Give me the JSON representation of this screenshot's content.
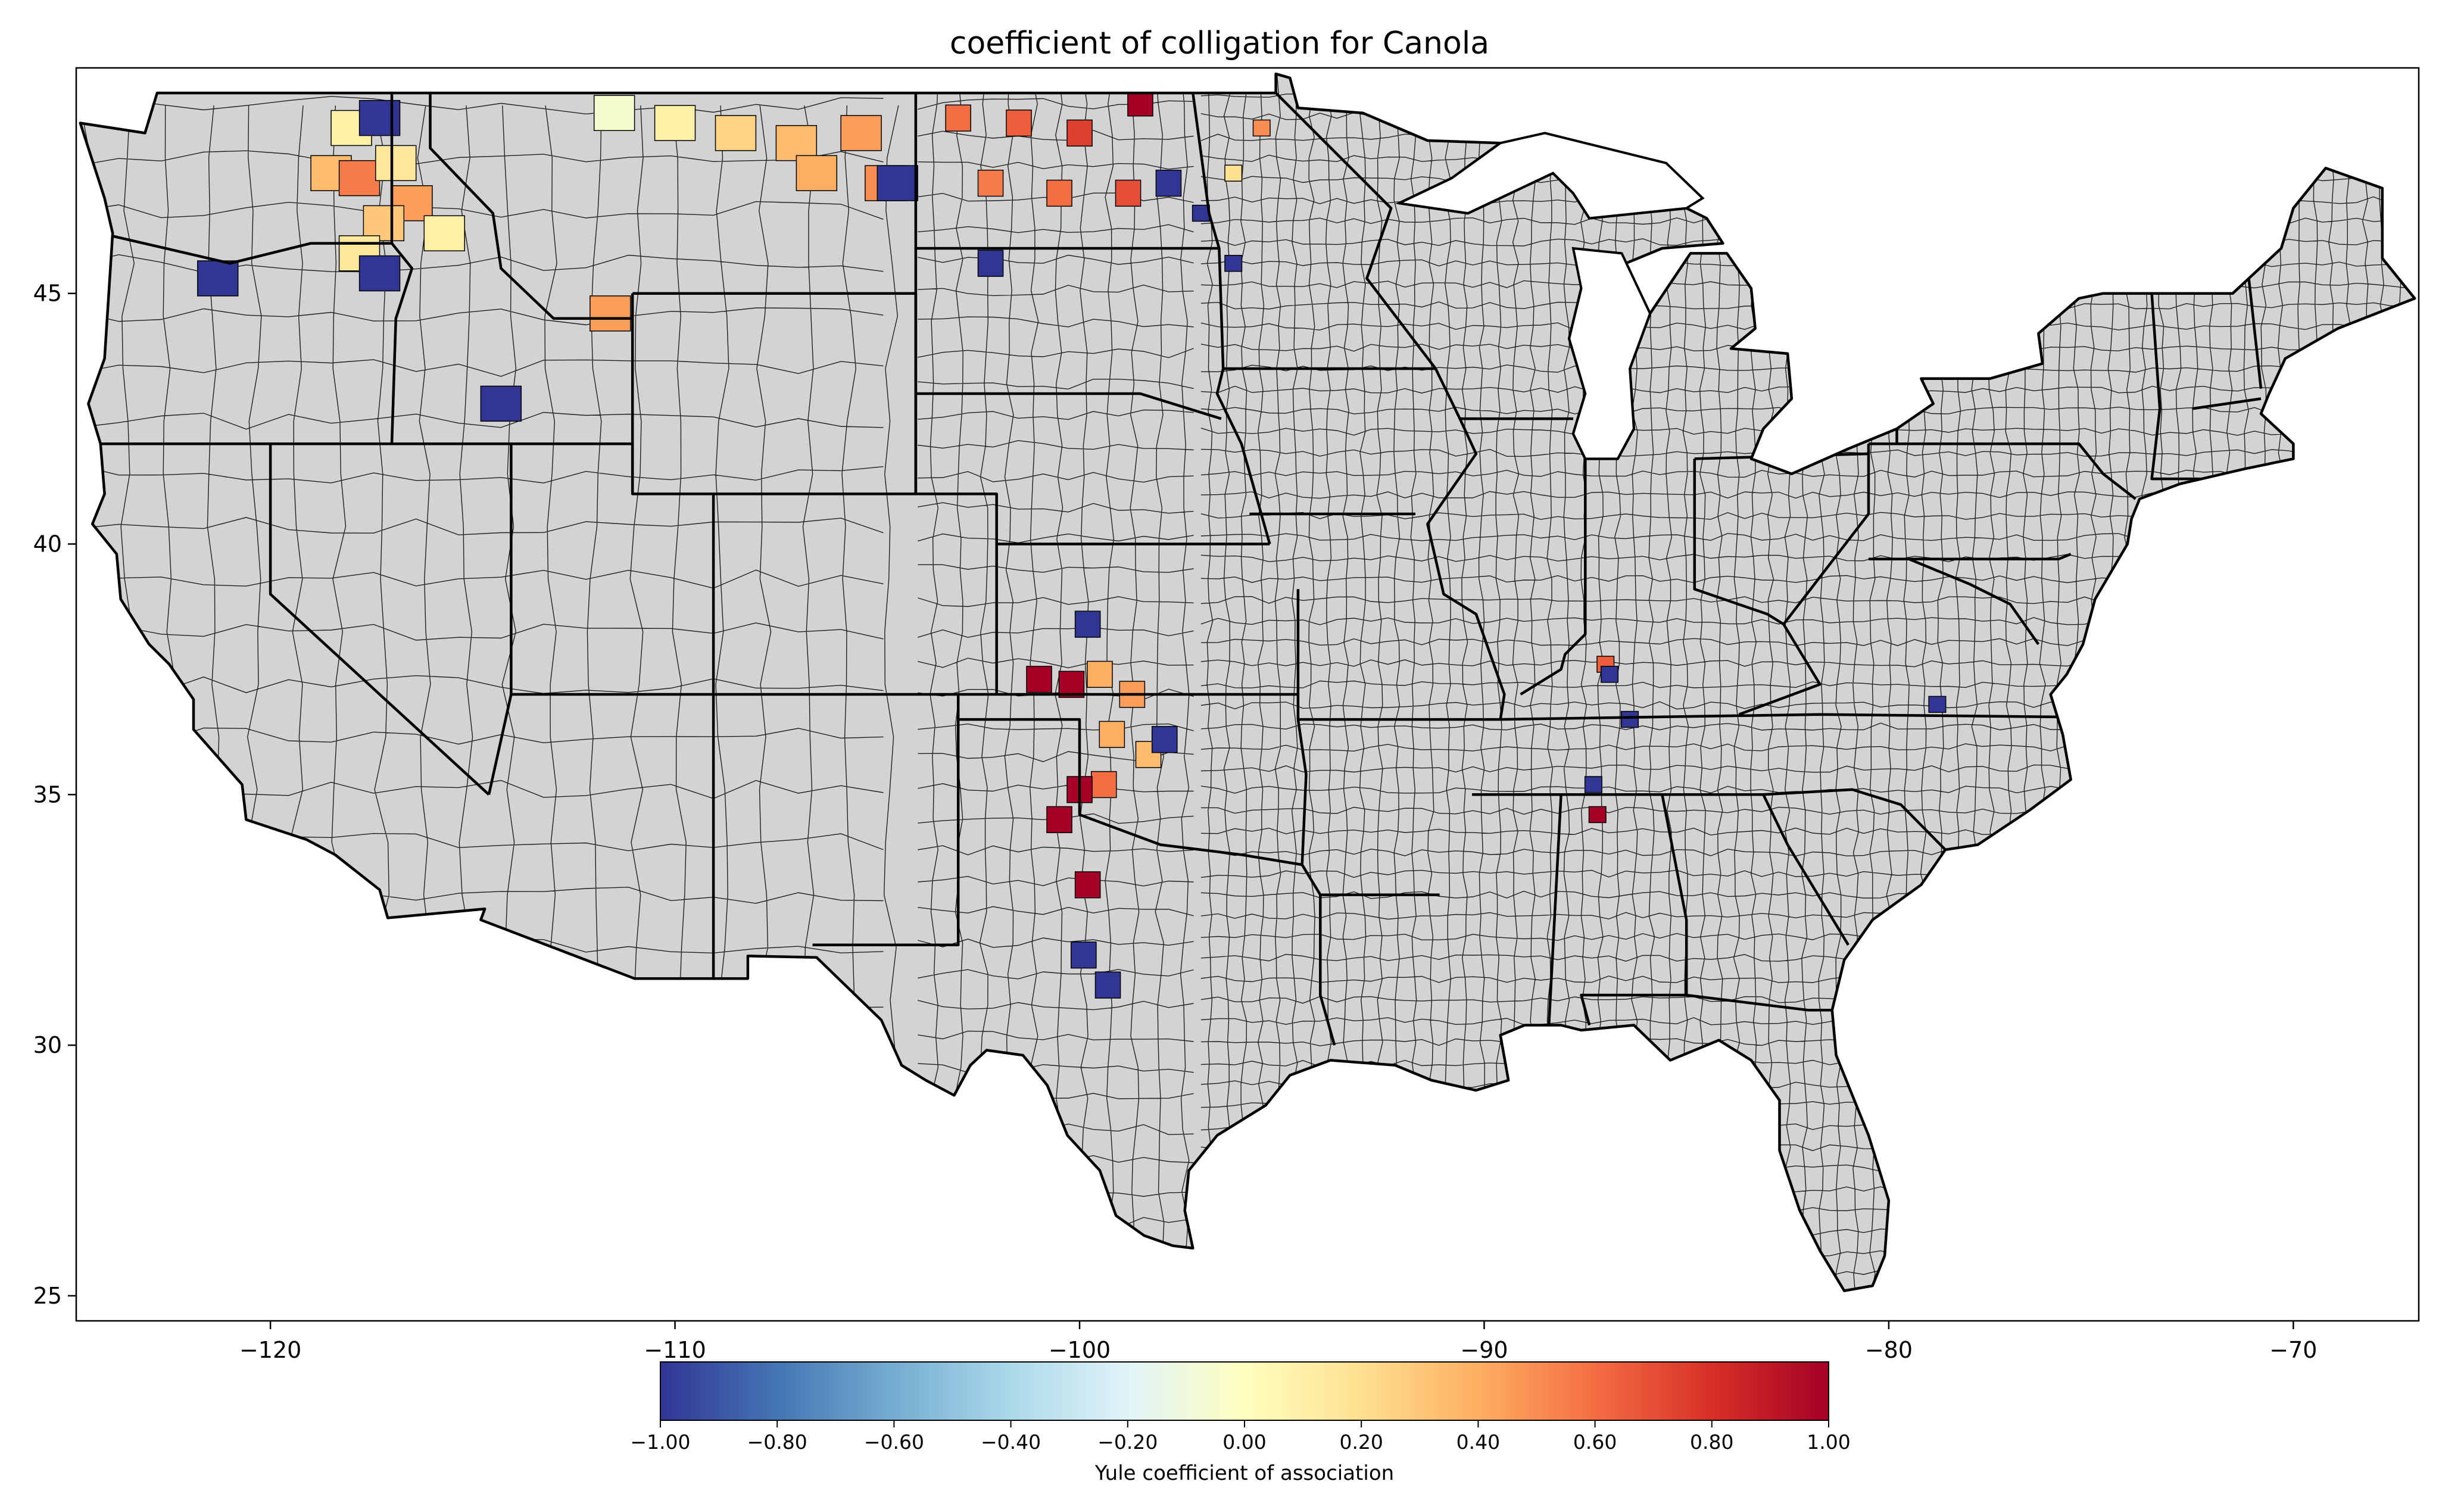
{
  "title": "coefficient of colligation for Canola",
  "x_axis": {
    "ticks": [
      "−120",
      "−110",
      "−100",
      "−90",
      "−80",
      "−70"
    ],
    "tick_values": [
      -120,
      -110,
      -100,
      -90,
      -80,
      -70
    ],
    "range": [
      -124.8,
      -66.9
    ]
  },
  "y_axis": {
    "ticks": [
      "25",
      "30",
      "35",
      "40",
      "45"
    ],
    "tick_values": [
      25,
      30,
      35,
      40,
      45
    ],
    "range": [
      24.5,
      49.5
    ]
  },
  "colorbar": {
    "label": "Yule coefficient of association",
    "colormap": "RdYlBu_r",
    "range": [
      -1.0,
      1.0
    ],
    "ticks": [
      "−1.00",
      "−0.80",
      "−0.60",
      "−0.40",
      "−0.20",
      "0.00",
      "0.20",
      "0.40",
      "0.60",
      "0.80",
      "1.00"
    ],
    "tick_values": [
      -1.0,
      -0.8,
      -0.6,
      -0.4,
      -0.2,
      0.0,
      0.2,
      0.4,
      0.6,
      0.8,
      1.0
    ],
    "colors": [
      "#313695",
      "#4575b4",
      "#74add1",
      "#abd9e9",
      "#e0f3f8",
      "#ffffbf",
      "#fee090",
      "#fdae61",
      "#f46d43",
      "#d73027",
      "#a50026"
    ]
  },
  "map": {
    "background_fill": "#d3d3d3",
    "no_data_label": ""
  },
  "chart_data": {
    "type": "heatmap",
    "title": "coefficient of colligation for Canola",
    "xlabel": "",
    "ylabel": "",
    "xlim": [
      -124.8,
      -66.9
    ],
    "ylim": [
      24.5,
      49.5
    ],
    "colorbar_label": "Yule coefficient of association",
    "vmin": -1.0,
    "vmax": 1.0,
    "regions": [
      {
        "lon": -118.0,
        "lat": 48.3,
        "value": 0.1
      },
      {
        "lon": -117.3,
        "lat": 48.5,
        "value": -1.0
      },
      {
        "lon": -118.5,
        "lat": 47.4,
        "value": 0.35
      },
      {
        "lon": -117.8,
        "lat": 47.3,
        "value": 0.55
      },
      {
        "lon": -116.9,
        "lat": 47.6,
        "value": 0.15
      },
      {
        "lon": -116.5,
        "lat": 46.8,
        "value": 0.45
      },
      {
        "lon": -117.2,
        "lat": 46.4,
        "value": 0.3
      },
      {
        "lon": -115.7,
        "lat": 46.2,
        "value": 0.1
      },
      {
        "lon": -117.8,
        "lat": 45.8,
        "value": 0.15
      },
      {
        "lon": -117.3,
        "lat": 45.4,
        "value": -1.0
      },
      {
        "lon": -121.3,
        "lat": 45.3,
        "value": -1.0
      },
      {
        "lon": -114.3,
        "lat": 42.8,
        "value": -1.0
      },
      {
        "lon": -111.6,
        "lat": 44.6,
        "value": 0.45
      },
      {
        "lon": -111.5,
        "lat": 48.6,
        "value": -0.05
      },
      {
        "lon": -110.0,
        "lat": 48.4,
        "value": 0.1
      },
      {
        "lon": -108.5,
        "lat": 48.2,
        "value": 0.25
      },
      {
        "lon": -107.0,
        "lat": 48.0,
        "value": 0.35
      },
      {
        "lon": -105.4,
        "lat": 48.2,
        "value": 0.45
      },
      {
        "lon": -106.5,
        "lat": 47.4,
        "value": 0.4
      },
      {
        "lon": -104.8,
        "lat": 47.2,
        "value": 0.5
      },
      {
        "lon": -104.5,
        "lat": 47.2,
        "value": -1.0
      },
      {
        "lon": -103.0,
        "lat": 48.5,
        "value": 0.6
      },
      {
        "lon": -101.5,
        "lat": 48.4,
        "value": 0.65
      },
      {
        "lon": -100.0,
        "lat": 48.2,
        "value": 0.75
      },
      {
        "lon": -98.5,
        "lat": 48.8,
        "value": 1.0
      },
      {
        "lon": -102.2,
        "lat": 47.2,
        "value": 0.55
      },
      {
        "lon": -100.5,
        "lat": 47.0,
        "value": 0.6
      },
      {
        "lon": -98.8,
        "lat": 47.0,
        "value": 0.7
      },
      {
        "lon": -97.8,
        "lat": 47.2,
        "value": -1.0
      },
      {
        "lon": -97.0,
        "lat": 46.6,
        "value": -1.0
      },
      {
        "lon": -102.2,
        "lat": 45.6,
        "value": -1.0
      },
      {
        "lon": -95.5,
        "lat": 48.3,
        "value": 0.5
      },
      {
        "lon": -96.2,
        "lat": 47.4,
        "value": 0.2
      },
      {
        "lon": -96.2,
        "lat": 45.6,
        "value": -1.0
      },
      {
        "lon": -99.5,
        "lat": 37.4,
        "value": 0.4
      },
      {
        "lon": -98.7,
        "lat": 37.0,
        "value": 0.45
      },
      {
        "lon": -100.2,
        "lat": 37.2,
        "value": 1.0
      },
      {
        "lon": -101.0,
        "lat": 37.3,
        "value": 1.0
      },
      {
        "lon": -99.2,
        "lat": 36.2,
        "value": 0.4
      },
      {
        "lon": -98.3,
        "lat": 35.8,
        "value": 0.35
      },
      {
        "lon": -99.4,
        "lat": 35.2,
        "value": 0.6
      },
      {
        "lon": -100.0,
        "lat": 35.1,
        "value": 1.0
      },
      {
        "lon": -100.5,
        "lat": 34.5,
        "value": 1.0
      },
      {
        "lon": -99.8,
        "lat": 33.2,
        "value": 1.0
      },
      {
        "lon": -99.8,
        "lat": 38.4,
        "value": -1.0
      },
      {
        "lon": -97.9,
        "lat": 36.1,
        "value": -1.0
      },
      {
        "lon": -99.9,
        "lat": 31.8,
        "value": -1.0
      },
      {
        "lon": -99.3,
        "lat": 31.2,
        "value": -1.0
      },
      {
        "lon": -87.0,
        "lat": 37.6,
        "value": 0.65
      },
      {
        "lon": -86.9,
        "lat": 37.4,
        "value": -1.0
      },
      {
        "lon": -86.4,
        "lat": 36.5,
        "value": -1.0
      },
      {
        "lon": -87.3,
        "lat": 35.2,
        "value": -1.0
      },
      {
        "lon": -87.2,
        "lat": 34.6,
        "value": 1.0
      },
      {
        "lon": -78.8,
        "lat": 36.8,
        "value": -1.0
      }
    ]
  }
}
